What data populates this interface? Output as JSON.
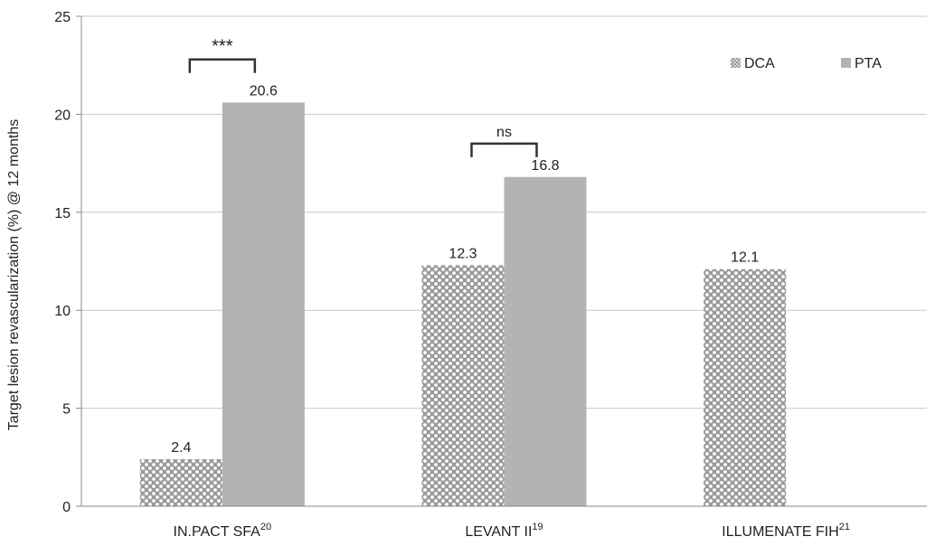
{
  "chart_data": {
    "type": "bar",
    "title": "",
    "xlabel": "",
    "ylabel": "Target lesion revascularization (%) @ 12 months",
    "ylim": [
      0,
      25
    ],
    "yticks": [
      0,
      5,
      10,
      15,
      20,
      25
    ],
    "grid": true,
    "legend_position": "top-right",
    "categories": [
      {
        "name": "IN.PACT SFA",
        "sup": "20"
      },
      {
        "name": "LEVANT II",
        "sup": "19"
      },
      {
        "name": "ILLUMENATE FIH",
        "sup": "21"
      }
    ],
    "series": [
      {
        "name": "DCA",
        "pattern": "checkered",
        "color": "#bdbdbd",
        "values": [
          2.4,
          12.3,
          12.1
        ]
      },
      {
        "name": "PTA",
        "pattern": "solid",
        "color": "#b3b3b3",
        "values": [
          20.6,
          16.8,
          null
        ]
      }
    ],
    "data_labels": [
      [
        "2.4",
        "12.3",
        "12.1"
      ],
      [
        "20.6",
        "16.8",
        ""
      ]
    ],
    "annotations": [
      {
        "category": 0,
        "label": "***",
        "y": 22.8
      },
      {
        "category": 1,
        "label": "ns",
        "y": 18.5
      }
    ]
  }
}
